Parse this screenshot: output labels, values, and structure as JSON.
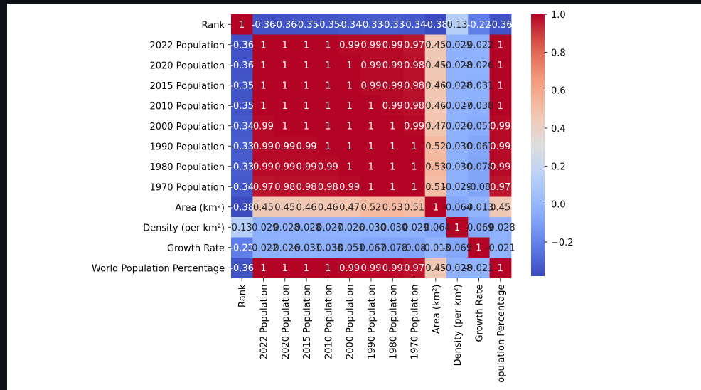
{
  "chart_data": {
    "type": "heatmap",
    "title": "",
    "xlabel": "",
    "ylabel": "",
    "labels": [
      "Rank",
      "2022 Population",
      "2020 Population",
      "2015 Population",
      "2010 Population",
      "2000 Population",
      "1990 Population",
      "1980 Population",
      "1970 Population",
      "Area (km²)",
      "Density (per km²)",
      "Growth Rate",
      "World Population Percentage"
    ],
    "x_tick_labels": [
      "Rank",
      "2022 Population",
      "2020 Population",
      "2015 Population",
      "2010 Population",
      "2000 Population",
      "1990 Population",
      "1980 Population",
      "1970 Population",
      "Area (km²)",
      "Density (per km²)",
      "Growth Rate",
      "opulation Percentage"
    ],
    "cells": [
      [
        "1",
        "-0.36",
        "-0.36",
        "-0.35",
        "-0.35",
        "-0.34",
        "-0.33",
        "-0.33",
        "-0.34",
        "-0.38",
        "0.13",
        "-0.22",
        "-0.36"
      ],
      [
        "-0.36",
        "1",
        "1",
        "1",
        "1",
        "0.99",
        "0.99",
        "0.99",
        "0.97",
        "0.45",
        "-0.029",
        "-0.022",
        "1"
      ],
      [
        "-0.36",
        "1",
        "1",
        "1",
        "1",
        "1",
        "0.99",
        "0.99",
        "0.98",
        "0.45",
        "-0.028",
        "-0.026",
        "1"
      ],
      [
        "-0.35",
        "1",
        "1",
        "1",
        "1",
        "1",
        "0.99",
        "0.99",
        "0.98",
        "0.46",
        "-0.028",
        "-0.031",
        "1"
      ],
      [
        "-0.35",
        "1",
        "1",
        "1",
        "1",
        "1",
        "1",
        "0.99",
        "0.98",
        "0.46",
        "-0.027",
        "-0.038",
        "1"
      ],
      [
        "-0.34",
        "0.99",
        "1",
        "1",
        "1",
        "1",
        "1",
        "1",
        "0.99",
        "0.47",
        "-0.026",
        "-0.051",
        "0.99"
      ],
      [
        "-0.33",
        "0.99",
        "0.99",
        "0.99",
        "1",
        "1",
        "1",
        "1",
        "1",
        "0.52",
        "-0.030",
        "-0.067",
        "0.99"
      ],
      [
        "-0.33",
        "0.99",
        "0.99",
        "0.99",
        "0.99",
        "1",
        "1",
        "1",
        "1",
        "0.53",
        "-0.030",
        "-0.078",
        "0.99"
      ],
      [
        "-0.34",
        "0.97",
        "0.98",
        "0.98",
        "0.98",
        "0.99",
        "1",
        "1",
        "1",
        "0.51",
        "-0.029",
        "-0.08",
        "0.97"
      ],
      [
        "-0.38",
        "0.45",
        "0.45",
        "0.46",
        "0.46",
        "0.47",
        "0.52",
        "0.53",
        "0.51",
        "1",
        "-0.064",
        "-0.013",
        "0.45"
      ],
      [
        "0.13",
        "-0.029",
        "-0.028",
        "-0.028",
        "-0.027",
        "-0.026",
        "-0.030",
        "-0.030",
        "-0.029",
        "-0.064",
        "1",
        "-0.069",
        "-0.028"
      ],
      [
        "-0.22",
        "-0.022",
        "-0.026",
        "-0.031",
        "-0.038",
        "-0.051",
        "-0.067",
        "-0.078",
        "-0.08",
        "-0.013",
        "-0.069",
        "1",
        "-0.021"
      ],
      [
        "-0.36",
        "1",
        "1",
        "1",
        "1",
        "0.99",
        "0.99",
        "0.99",
        "0.97",
        "0.45",
        "-0.028",
        "-0.021",
        "1"
      ]
    ],
    "colormap": "coolwarm",
    "vmin": -0.38,
    "vmax": 1.0,
    "colorbar_ticks": [
      1.0,
      0.8,
      0.6,
      0.4,
      0.2,
      0.0,
      -0.2
    ],
    "colorbar_tick_labels": [
      "1.0",
      "0.8",
      "0.6",
      "0.4",
      "0.2",
      "0.0",
      "−0.2"
    ],
    "grid": false
  }
}
